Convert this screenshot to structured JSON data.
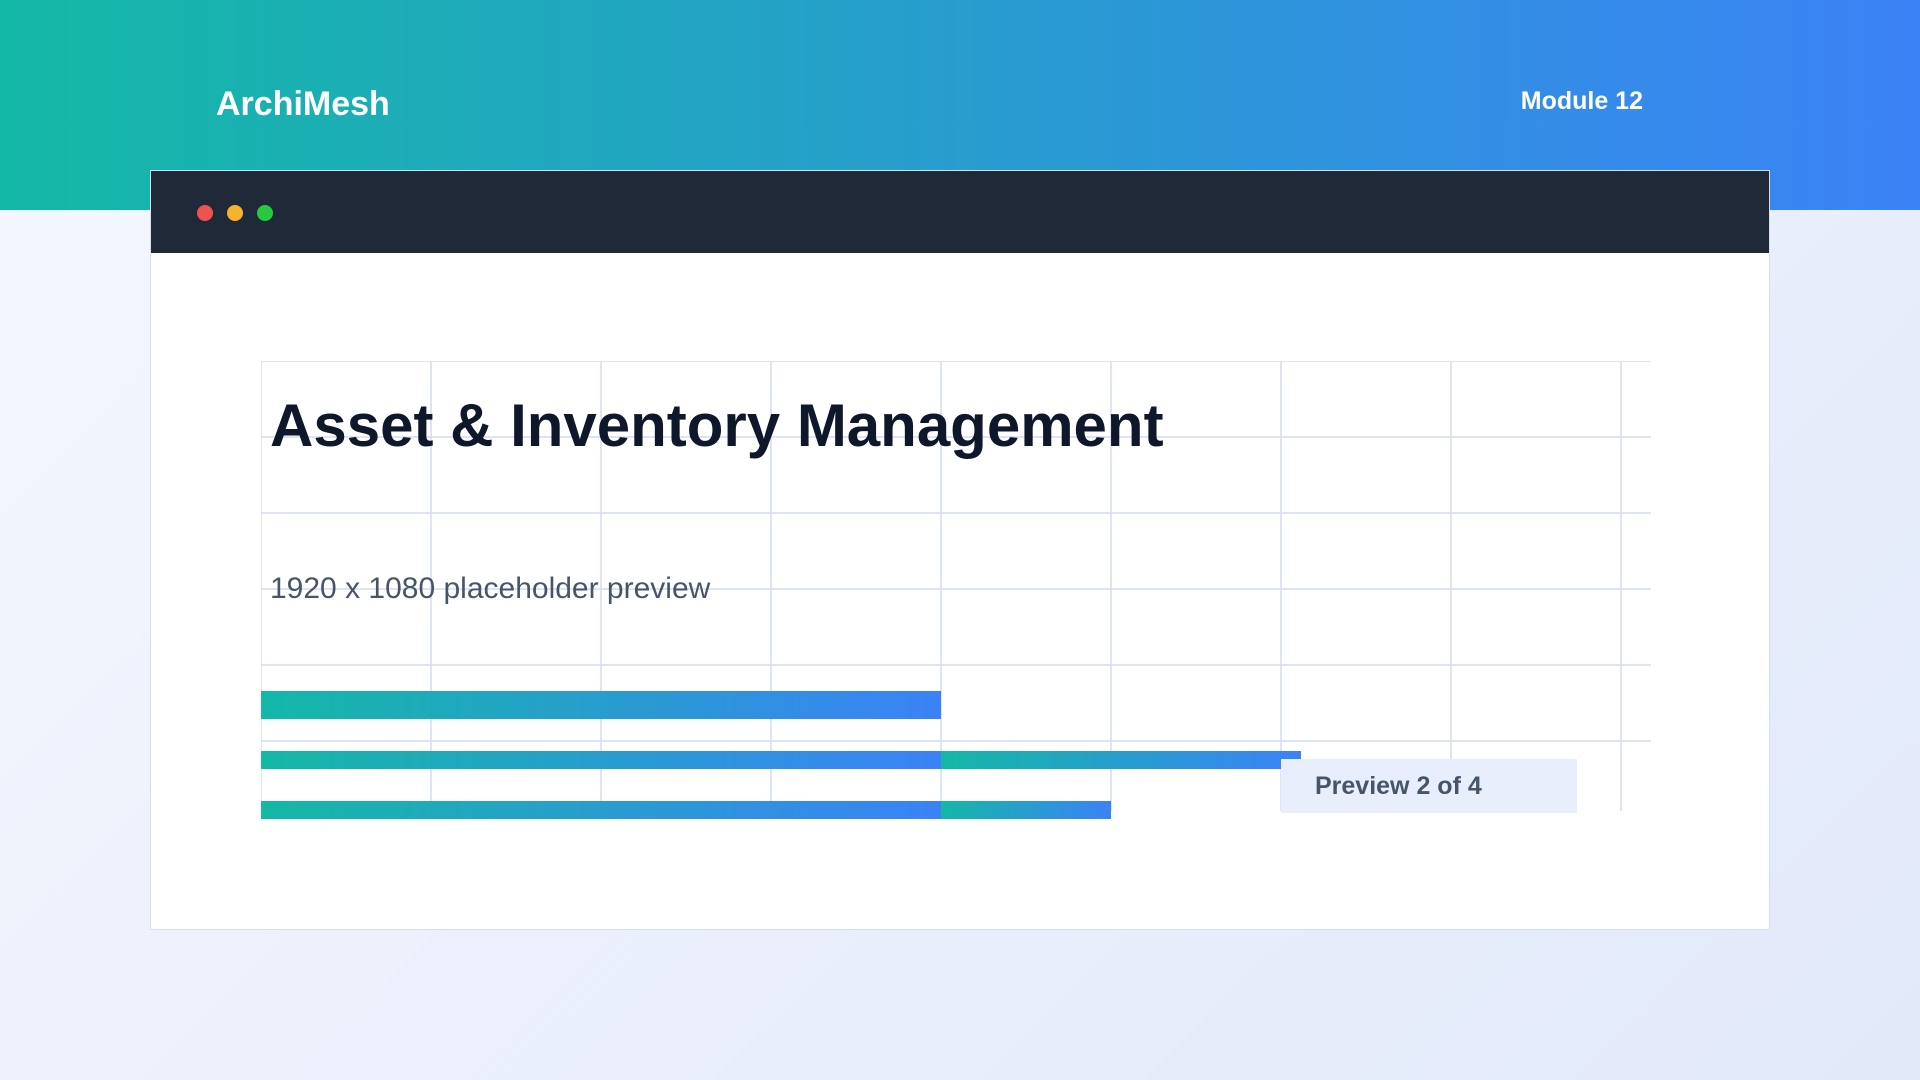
{
  "header": {
    "brand": "ArchiMesh",
    "module": "Module 12"
  },
  "colors": {
    "accent_start": "#14b8a6",
    "accent_end": "#3b82f6",
    "titlebar": "#1f2937",
    "badge_bg": "#e8eefc"
  },
  "window": {
    "controls": [
      "close-dot",
      "minimize-dot",
      "maximize-dot"
    ],
    "title": "Asset & Inventory Management",
    "subtitle": "1920 x 1080 placeholder preview",
    "badge": "Preview 2 of 4"
  }
}
